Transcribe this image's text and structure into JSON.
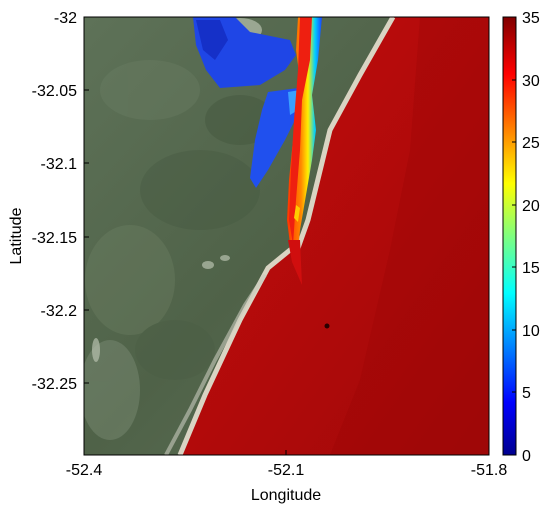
{
  "map": {
    "xlabel": "Longitude",
    "ylabel": "Latitude",
    "xlim": [
      -52.4,
      -51.8
    ],
    "ylim": [
      -32.3,
      -32.0
    ],
    "x_ticks": [
      "-52.4",
      "-52.1",
      "-51.8"
    ],
    "y_ticks": [
      "-32",
      "-32.05",
      "-32.1",
      "-32.15",
      "-32.2",
      "-32.25"
    ],
    "basemap": "satellite imagery of coastal lagoon outlet",
    "overlay": "salinity field (jet colormap)",
    "land_color": "#5b6d52",
    "ocean_value_color": "#c80a0a",
    "lagoon_low_color": "#1e3cd2"
  },
  "colorbar": {
    "min": 0,
    "max": 35,
    "ticks": [
      "35",
      "30",
      "25",
      "20",
      "15",
      "10",
      "5",
      "0"
    ],
    "colormap": "jet"
  }
}
